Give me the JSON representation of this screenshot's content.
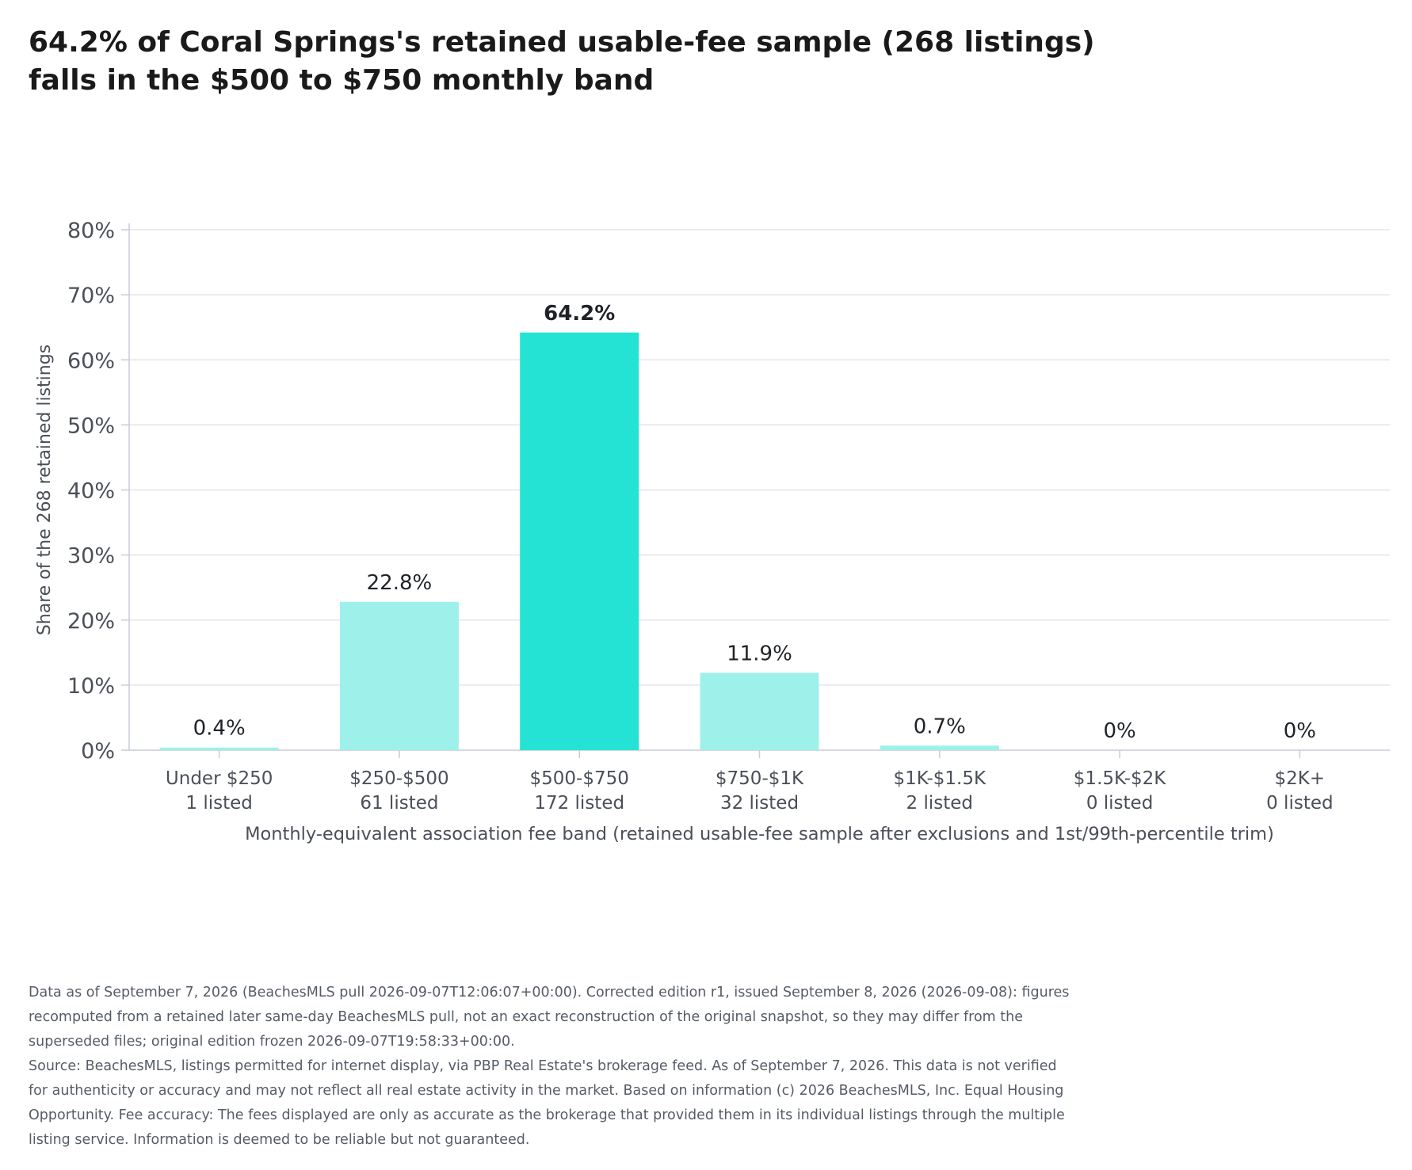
{
  "chart_data": {
    "type": "bar",
    "title": [
      "64.2% of Coral Springs's retained usable-fee sample (268 listings)",
      "falls in the $500 to $750 monthly band"
    ],
    "xlabel": "Monthly-equivalent association fee band (retained usable-fee sample after exclusions and 1st/99th-percentile trim)",
    "ylabel": "Share of the 268 retained listings",
    "ylim": [
      0,
      80
    ],
    "yticks": [
      "0%",
      "10%",
      "20%",
      "30%",
      "40%",
      "50%",
      "60%",
      "70%",
      "80%"
    ],
    "grid": true,
    "categories": [
      "Under $250",
      "$250-$500",
      "$500-$750",
      "$750-$1K",
      "$1K-$1.5K",
      "$1.5K-$2K",
      "$2K+"
    ],
    "counts": [
      "1 listed",
      "61 listed",
      "172 listed",
      "32 listed",
      "2 listed",
      "0 listed",
      "0 listed"
    ],
    "values": [
      0.4,
      22.8,
      64.2,
      11.9,
      0.7,
      0,
      0
    ],
    "data_labels": [
      "0.4%",
      "22.8%",
      "64.2%",
      "11.9%",
      "0.7%",
      "0%",
      "0%"
    ],
    "highlight_index": 2,
    "colors": {
      "bar": "#9ef1ea",
      "highlight": "#24e3d4",
      "grid": "#e3e5ee",
      "axis": "#c9ccd8"
    }
  },
  "notes": {
    "data_lines": [
      "Data as of September 7, 2026 (BeachesMLS pull 2026-09-07T12:06:07+00:00). Corrected edition r1, issued September 8, 2026 (2026-09-08): figures",
      "recomputed from a retained later same-day BeachesMLS pull, not an exact reconstruction of the original snapshot, so they may differ from the",
      "superseded files; original edition frozen 2026-09-07T19:58:33+00:00."
    ],
    "source_lines": [
      "Source: BeachesMLS, listings permitted for internet display, via PBP Real Estate's brokerage feed. As of September 7, 2026. This data is not verified",
      "for authenticity or accuracy and may not reflect all real estate activity in the market. Based on information (c) 2026 BeachesMLS, Inc. Equal Housing",
      "Opportunity. Fee accuracy: The fees displayed are only as accurate as the brokerage that provided them in its individual listings through the multiple",
      "listing service. Information is deemed to be reliable but not guaranteed."
    ]
  }
}
